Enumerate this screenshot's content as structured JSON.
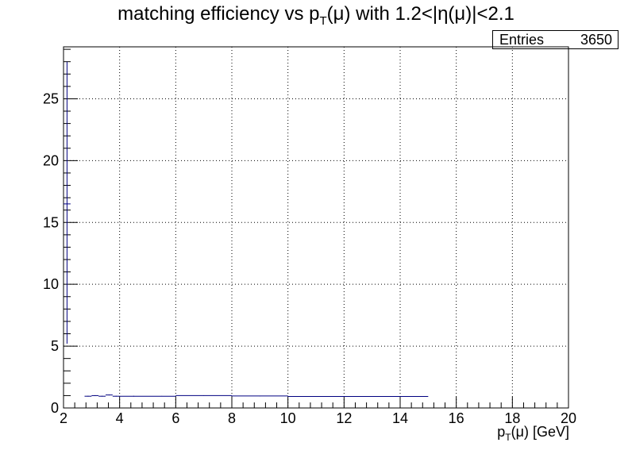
{
  "title": {
    "prefix": "matching efficiency vs p",
    "sub": "T",
    "suffix": "(μ) with 1.2<|η(μ)|<2.1"
  },
  "stats": {
    "label": "Entries",
    "value": "3650"
  },
  "xlabel": {
    "prefix": "p",
    "sub": "T",
    "suffix": "(μ) [GeV]"
  },
  "colors": {
    "line": "#000080",
    "grid": "#000000",
    "frame": "#000000"
  },
  "chart_data": {
    "type": "line",
    "step": true,
    "xlim": [
      2,
      20
    ],
    "ylim": [
      0,
      29.2
    ],
    "grid": true,
    "xticks": [
      2,
      4,
      6,
      8,
      10,
      12,
      14,
      16,
      18,
      20
    ],
    "yticks": [
      0,
      5,
      10,
      15,
      20,
      25
    ],
    "x_edges": [
      2.0,
      2.25,
      2.5,
      2.75,
      3.0,
      3.25,
      3.5,
      3.75,
      4.0,
      5.0,
      6.0,
      8.0,
      10.0,
      12.5,
      15.0
    ],
    "series": [
      {
        "values": [
          16.5,
          0,
          0,
          0.95,
          1.0,
          0.95,
          1.05,
          0.95,
          0.95,
          0.95,
          1.0,
          0.97,
          0.93,
          0.93
        ],
        "err_lo": [
          5.2,
          0,
          0,
          0.92,
          0.97,
          0.92,
          1.02,
          0.92,
          0.92,
          0.93,
          0.98,
          0.95,
          0.91,
          0.91
        ],
        "err_hi": [
          28.0,
          0,
          0,
          0.98,
          1.03,
          0.98,
          1.08,
          0.98,
          0.98,
          0.97,
          1.02,
          0.99,
          0.95,
          0.95
        ]
      }
    ]
  }
}
